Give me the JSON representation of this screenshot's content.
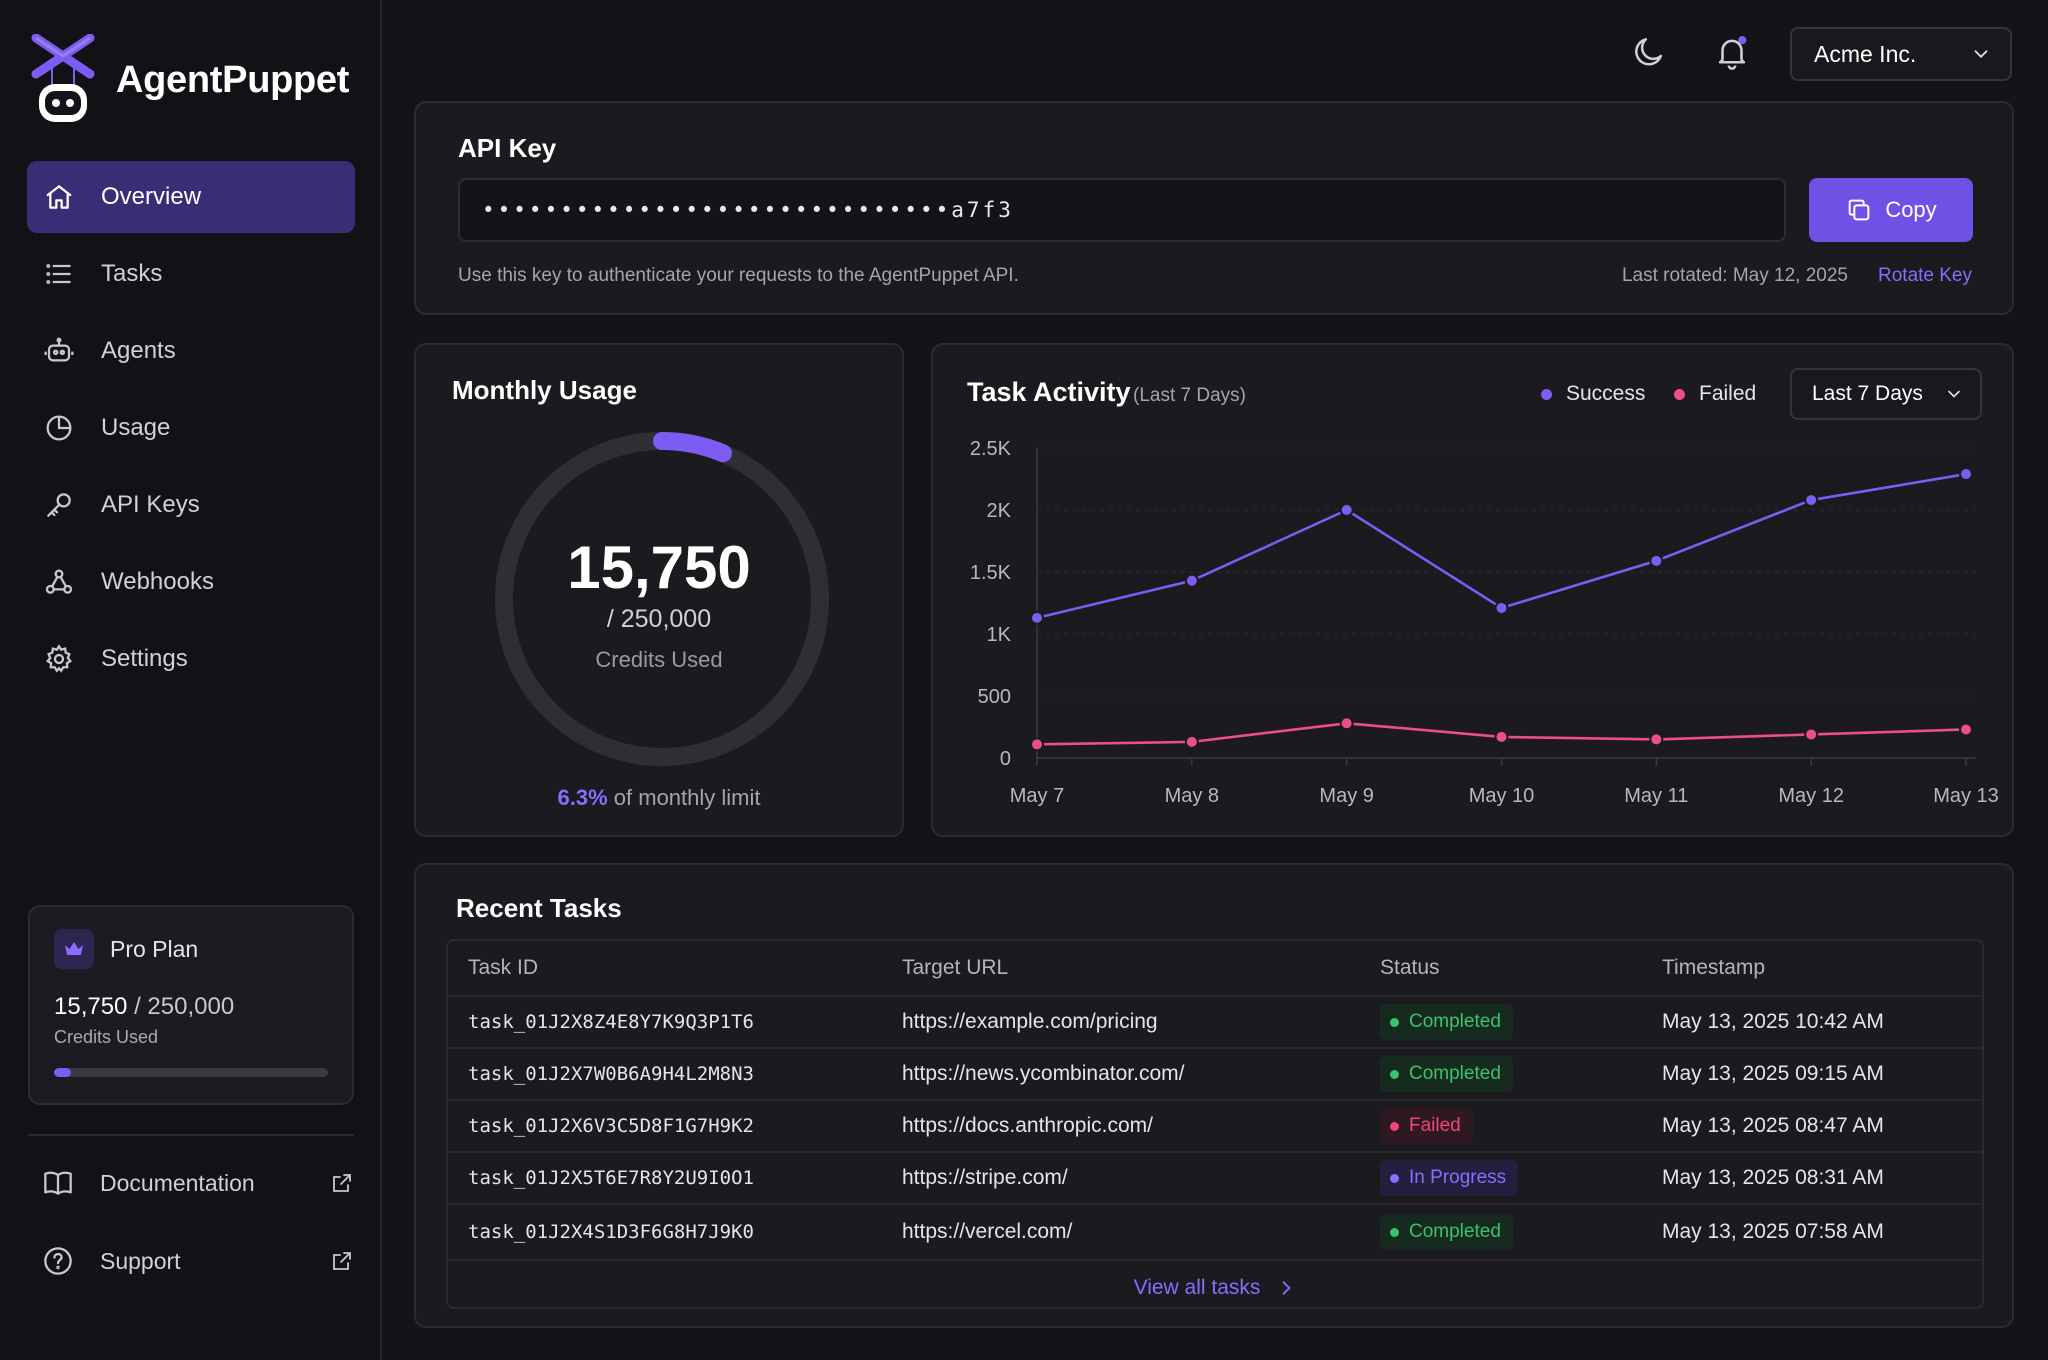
{
  "brand": {
    "name": "AgentPuppet"
  },
  "colors": {
    "accent": "#7c5cf2",
    "success": "#7c5cf2",
    "failed": "#ec4f86",
    "completed": "#39c46a"
  },
  "nav": [
    {
      "label": "Overview",
      "icon": "home-icon",
      "active": true
    },
    {
      "label": "Tasks",
      "icon": "list-icon"
    },
    {
      "label": "Agents",
      "icon": "robot-icon"
    },
    {
      "label": "Usage",
      "icon": "pie-chart-icon"
    },
    {
      "label": "API Keys",
      "icon": "key-icon"
    },
    {
      "label": "Webhooks",
      "icon": "webhook-icon"
    },
    {
      "label": "Settings",
      "icon": "gear-icon"
    }
  ],
  "plan": {
    "name": "Pro Plan",
    "used": "15,750",
    "limit": "/ 250,000",
    "label": "Credits Used",
    "fraction": 0.063
  },
  "sidebar_links": [
    {
      "label": "Documentation",
      "icon": "book-icon"
    },
    {
      "label": "Support",
      "icon": "help-circle-icon"
    }
  ],
  "topbar": {
    "org": "Acme Inc."
  },
  "api_key": {
    "title": "API Key",
    "masked_value": "••••••••••••••••••••••••••••••a7f3",
    "copy_label": "Copy",
    "hint": "Use this key to authenticate your requests to the AgentPuppet API.",
    "last_rotated": "Last rotated: May 12, 2025",
    "rotate_label": "Rotate Key"
  },
  "usage": {
    "title": "Monthly Usage",
    "value": "15,750",
    "limit": "/ 250,000",
    "label": "Credits Used",
    "percent": "6.3%",
    "percent_suffix": "of monthly limit",
    "fraction": 0.063
  },
  "activity": {
    "title": "Task Activity",
    "subtitle": "(Last 7 Days)",
    "range": "Last 7 Days"
  },
  "chart_data": {
    "type": "line",
    "categories": [
      "May 7",
      "May 8",
      "May 9",
      "May 10",
      "May 11",
      "May 12",
      "May 13"
    ],
    "series": [
      {
        "name": "Success",
        "values": [
          1130,
          1430,
          2000,
          1210,
          1590,
          2080,
          2290
        ]
      },
      {
        "name": "Failed",
        "values": [
          110,
          130,
          280,
          170,
          150,
          190,
          230
        ]
      }
    ],
    "ylim": [
      0,
      2500
    ],
    "yticks": [
      0,
      500,
      1000,
      1500,
      2000,
      2500
    ],
    "ytick_labels": [
      "0",
      "500",
      "1K",
      "1.5K",
      "2K",
      "2.5K"
    ],
    "legend": "top-right",
    "grid": true
  },
  "tasks": {
    "title": "Recent Tasks",
    "columns": [
      "Task ID",
      "Target URL",
      "Status",
      "Timestamp"
    ],
    "rows": [
      {
        "id": "task_01J2X8Z4E8Y7K9Q3P1T6",
        "url": "https://example.com/pricing",
        "status": "Completed",
        "status_key": "completed",
        "time": "May 13, 2025 10:42 AM"
      },
      {
        "id": "task_01J2X7W0B6A9H4L2M8N3",
        "url": "https://news.ycombinator.com/",
        "status": "Completed",
        "status_key": "completed",
        "time": "May 13, 2025 09:15 AM"
      },
      {
        "id": "task_01J2X6V3C5D8F1G7H9K2",
        "url": "https://docs.anthropic.com/",
        "status": "Failed",
        "status_key": "failed",
        "time": "May 13, 2025 08:47 AM"
      },
      {
        "id": "task_01J2X5T6E7R8Y2U9I0O1",
        "url": "https://stripe.com/",
        "status": "In Progress",
        "status_key": "progress",
        "time": "May 13, 2025 08:31 AM"
      },
      {
        "id": "task_01J2X4S1D3F6G8H7J9K0",
        "url": "https://vercel.com/",
        "status": "Completed",
        "status_key": "completed",
        "time": "May 13, 2025 07:58 AM"
      }
    ],
    "view_all": "View all tasks"
  }
}
